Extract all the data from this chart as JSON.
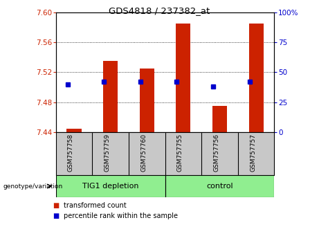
{
  "title": "GDS4818 / 237382_at",
  "samples": [
    "GSM757758",
    "GSM757759",
    "GSM757760",
    "GSM757755",
    "GSM757756",
    "GSM757757"
  ],
  "group_labels": [
    "TIG1 depletion",
    "control"
  ],
  "red_values": [
    7.445,
    7.535,
    7.525,
    7.585,
    7.475,
    7.585
  ],
  "blue_percentiles": [
    40,
    42,
    42,
    42,
    38,
    42
  ],
  "y_min": 7.44,
  "y_max": 7.6,
  "y_ticks": [
    7.44,
    7.48,
    7.52,
    7.56,
    7.6
  ],
  "y_right_ticks": [
    0,
    25,
    50,
    75,
    100
  ],
  "y_right_labels": [
    "0",
    "25",
    "50",
    "75",
    "100%"
  ],
  "bar_color": "#CC2200",
  "dot_color": "#0000CC",
  "bar_width": 0.4,
  "baseline": 7.44,
  "legend_red": "transformed count",
  "legend_blue": "percentile rank within the sample",
  "genotype_label": "genotype/variation",
  "tick_color_left": "#CC2200",
  "tick_color_right": "#0000CC",
  "background_plot": "#FFFFFF",
  "background_label": "#C8C8C8",
  "background_group": "#90EE90",
  "group_divider": 3
}
